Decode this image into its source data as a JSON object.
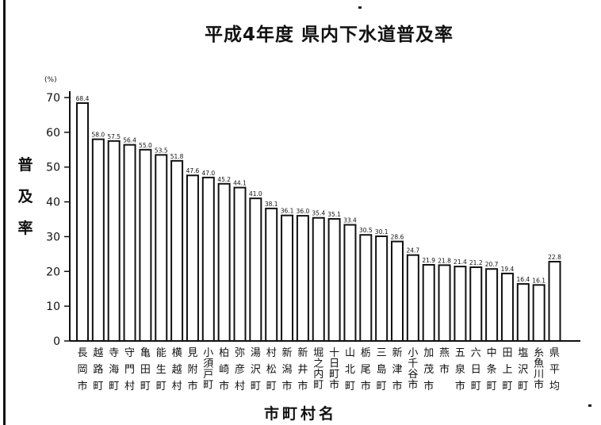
{
  "title": "平成4年度 県内下水道普及率",
  "ylabel_chars": [
    "普",
    "及",
    "率"
  ],
  "y_unit": "(%)",
  "xlabel": "市町村名",
  "chart_data": {
    "type": "bar",
    "title": "平成4年度 県内下水道普及率",
    "xlabel": "市町村名",
    "ylabel": "普及率",
    "y_unit": "(%)",
    "ylim": [
      0,
      70
    ],
    "yticks": [
      0,
      10,
      20,
      30,
      40,
      50,
      60,
      70
    ],
    "grid": false,
    "categories": [
      "長岡市",
      "越路町",
      "寺海町",
      "守門村",
      "亀田町",
      "能生町",
      "横越村",
      "見附市",
      "小須戸町",
      "柏崎市",
      "弥彦村",
      "湯沢町",
      "村松町",
      "新潟市",
      "新井市",
      "堀之内町",
      "十日町市",
      "山北町",
      "栃尾市",
      "三島町",
      "新津市",
      "小千谷市",
      "加茂市",
      "燕市",
      "五泉市",
      "六日町",
      "中条町",
      "田上町",
      "塩沢町",
      "糸魚川市",
      "県平均"
    ],
    "values": [
      68.4,
      58.0,
      57.5,
      56.4,
      55.0,
      53.5,
      51.8,
      47.6,
      47.0,
      45.2,
      44.1,
      41.0,
      38.1,
      36.1,
      36.0,
      35.4,
      35.1,
      33.4,
      30.5,
      30.1,
      28.6,
      24.7,
      21.9,
      21.8,
      21.4,
      21.2,
      20.7,
      19.4,
      16.4,
      16.1,
      22.8
    ],
    "value_labels": [
      "68.4",
      "58.0",
      "57.5",
      "56.4",
      "55.0",
      "53.5",
      "51.8",
      "47.6",
      "47.0",
      "45.2",
      "44.1",
      "41.0",
      "38.1",
      "36.1",
      "36.0",
      "35.4",
      "35.1",
      "33.4",
      "30.5",
      "30.1",
      "28.6",
      "24.7",
      "21.9",
      "21.8",
      "21.4",
      "21.2",
      "20.7",
      "19.4",
      "16.4",
      "16.1",
      "22.8"
    ]
  },
  "colors": {
    "ink": "#111111",
    "bar_fill": "#ffffff"
  }
}
